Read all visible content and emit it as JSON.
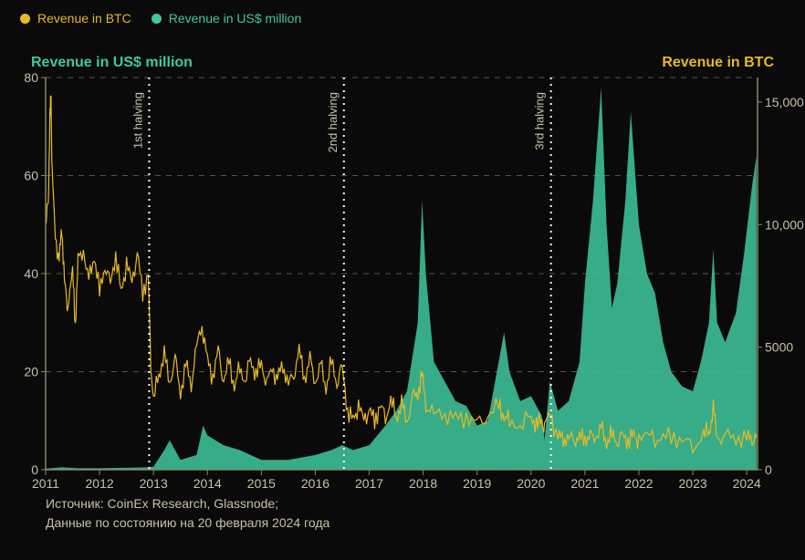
{
  "legend": {
    "btc": {
      "label": "Revenue in BTC",
      "color": "#e8b923"
    },
    "usd": {
      "label": "Revenue in US$ million",
      "color": "#3fc99f"
    }
  },
  "axis_titles": {
    "left": {
      "text": "Revenue in US$ million",
      "color": "#3fc99f"
    },
    "right": {
      "text": "Revenue in BTC",
      "color": "#e8b923"
    }
  },
  "chart": {
    "type": "dual-axis-area-line",
    "background_color": "#0a0a0a",
    "grid_color": "#555544",
    "axis_line_color": "#888866",
    "tick_label_color": "#c8c0a8",
    "tick_fontsize": 14,
    "x": {
      "min": 2011.0,
      "max": 2024.2,
      "ticks": [
        2011,
        2012,
        2013,
        2014,
        2015,
        2016,
        2017,
        2018,
        2019,
        2020,
        2021,
        2022,
        2023,
        2024
      ]
    },
    "y_left": {
      "min": 0,
      "max": 80,
      "ticks": [
        0,
        20,
        40,
        60,
        80
      ]
    },
    "y_right": {
      "min": 0,
      "max": 16000,
      "ticks": [
        0,
        5000,
        10000,
        15000
      ],
      "tick_labels": [
        "0",
        "5000",
        "10,000",
        "15,000"
      ]
    },
    "halvings": [
      {
        "x": 2012.92,
        "label": "1st halving"
      },
      {
        "x": 2016.53,
        "label": "2nd halving"
      },
      {
        "x": 2020.37,
        "label": "3rd halving"
      }
    ],
    "halving_line_color": "#ffffff",
    "halving_label_color": "#c8c0a8",
    "halving_label_fontsize": 13,
    "series_usd": {
      "color": "#3fc99f",
      "fill_opacity": 0.85,
      "points": [
        [
          2011.0,
          0.2
        ],
        [
          2011.3,
          0.5
        ],
        [
          2011.6,
          0.3
        ],
        [
          2012.0,
          0.3
        ],
        [
          2012.5,
          0.4
        ],
        [
          2012.9,
          0.5
        ],
        [
          2013.0,
          0.6
        ],
        [
          2013.2,
          4
        ],
        [
          2013.3,
          6
        ],
        [
          2013.5,
          2
        ],
        [
          2013.8,
          3
        ],
        [
          2013.92,
          9
        ],
        [
          2014.0,
          7
        ],
        [
          2014.3,
          5
        ],
        [
          2014.6,
          4
        ],
        [
          2015.0,
          2
        ],
        [
          2015.5,
          2
        ],
        [
          2016.0,
          3
        ],
        [
          2016.3,
          4
        ],
        [
          2016.5,
          5
        ],
        [
          2016.7,
          4
        ],
        [
          2017.0,
          5
        ],
        [
          2017.3,
          9
        ],
        [
          2017.5,
          12
        ],
        [
          2017.7,
          16
        ],
        [
          2017.9,
          30
        ],
        [
          2017.98,
          55
        ],
        [
          2018.05,
          40
        ],
        [
          2018.2,
          22
        ],
        [
          2018.4,
          18
        ],
        [
          2018.6,
          14
        ],
        [
          2018.8,
          13
        ],
        [
          2019.0,
          9
        ],
        [
          2019.2,
          10
        ],
        [
          2019.4,
          22
        ],
        [
          2019.5,
          28
        ],
        [
          2019.6,
          20
        ],
        [
          2019.8,
          14
        ],
        [
          2020.0,
          15
        ],
        [
          2020.2,
          11
        ],
        [
          2020.25,
          6
        ],
        [
          2020.35,
          18
        ],
        [
          2020.5,
          12
        ],
        [
          2020.7,
          14
        ],
        [
          2020.9,
          22
        ],
        [
          2021.0,
          38
        ],
        [
          2021.15,
          55
        ],
        [
          2021.3,
          78
        ],
        [
          2021.4,
          50
        ],
        [
          2021.5,
          33
        ],
        [
          2021.6,
          38
        ],
        [
          2021.75,
          55
        ],
        [
          2021.85,
          73
        ],
        [
          2022.0,
          50
        ],
        [
          2022.15,
          40
        ],
        [
          2022.3,
          36
        ],
        [
          2022.45,
          26
        ],
        [
          2022.6,
          20
        ],
        [
          2022.8,
          17
        ],
        [
          2023.0,
          16
        ],
        [
          2023.15,
          22
        ],
        [
          2023.3,
          30
        ],
        [
          2023.38,
          45
        ],
        [
          2023.45,
          30
        ],
        [
          2023.6,
          26
        ],
        [
          2023.8,
          32
        ],
        [
          2023.95,
          44
        ],
        [
          2024.1,
          58
        ],
        [
          2024.18,
          64
        ]
      ]
    },
    "series_btc": {
      "color": "#e8b923",
      "line_width": 1.2,
      "points": [
        [
          2011.0,
          50
        ],
        [
          2011.05,
          55
        ],
        [
          2011.08,
          72
        ],
        [
          2011.1,
          76
        ],
        [
          2011.12,
          60
        ],
        [
          2011.18,
          48
        ],
        [
          2011.25,
          42
        ],
        [
          2011.3,
          50
        ],
        [
          2011.35,
          38
        ],
        [
          2011.4,
          34
        ],
        [
          2011.5,
          40
        ],
        [
          2011.55,
          30
        ],
        [
          2011.6,
          42
        ],
        [
          2011.7,
          45
        ],
        [
          2011.8,
          38
        ],
        [
          2011.9,
          44
        ],
        [
          2012.0,
          36
        ],
        [
          2012.1,
          42
        ],
        [
          2012.2,
          38
        ],
        [
          2012.3,
          44
        ],
        [
          2012.4,
          36
        ],
        [
          2012.5,
          42
        ],
        [
          2012.6,
          38
        ],
        [
          2012.7,
          44
        ],
        [
          2012.8,
          36
        ],
        [
          2012.9,
          40
        ],
        [
          2012.95,
          22
        ],
        [
          2013.0,
          14
        ],
        [
          2013.1,
          20
        ],
        [
          2013.2,
          23
        ],
        [
          2013.3,
          18
        ],
        [
          2013.4,
          22
        ],
        [
          2013.5,
          16
        ],
        [
          2013.6,
          21
        ],
        [
          2013.7,
          18
        ],
        [
          2013.8,
          25
        ],
        [
          2013.9,
          30
        ],
        [
          2014.0,
          22
        ],
        [
          2014.1,
          19
        ],
        [
          2014.2,
          24
        ],
        [
          2014.3,
          18
        ],
        [
          2014.4,
          22
        ],
        [
          2014.5,
          17
        ],
        [
          2014.6,
          21
        ],
        [
          2014.7,
          18
        ],
        [
          2014.8,
          23
        ],
        [
          2014.9,
          19
        ],
        [
          2015.0,
          22
        ],
        [
          2015.1,
          17
        ],
        [
          2015.2,
          21
        ],
        [
          2015.3,
          18
        ],
        [
          2015.4,
          22
        ],
        [
          2015.5,
          17
        ],
        [
          2015.6,
          20
        ],
        [
          2015.7,
          24
        ],
        [
          2015.8,
          19
        ],
        [
          2015.9,
          22
        ],
        [
          2016.0,
          18
        ],
        [
          2016.1,
          21
        ],
        [
          2016.2,
          17
        ],
        [
          2016.3,
          22
        ],
        [
          2016.4,
          18
        ],
        [
          2016.5,
          21
        ],
        [
          2016.6,
          12
        ],
        [
          2016.7,
          10
        ],
        [
          2016.8,
          13
        ],
        [
          2016.9,
          10
        ],
        [
          2017.0,
          12
        ],
        [
          2017.1,
          10
        ],
        [
          2017.2,
          13
        ],
        [
          2017.3,
          11
        ],
        [
          2017.4,
          14
        ],
        [
          2017.5,
          11
        ],
        [
          2017.6,
          13
        ],
        [
          2017.7,
          10
        ],
        [
          2017.8,
          14
        ],
        [
          2017.9,
          16
        ],
        [
          2017.98,
          19
        ],
        [
          2018.05,
          14
        ],
        [
          2018.2,
          11
        ],
        [
          2018.4,
          12
        ],
        [
          2018.6,
          10
        ],
        [
          2018.8,
          11
        ],
        [
          2019.0,
          9
        ],
        [
          2019.2,
          11
        ],
        [
          2019.4,
          13
        ],
        [
          2019.5,
          11
        ],
        [
          2019.6,
          10
        ],
        [
          2019.8,
          9
        ],
        [
          2020.0,
          11
        ],
        [
          2020.1,
          9
        ],
        [
          2020.2,
          10
        ],
        [
          2020.25,
          8
        ],
        [
          2020.35,
          12
        ],
        [
          2020.5,
          6
        ],
        [
          2020.6,
          7
        ],
        [
          2020.7,
          6
        ],
        [
          2020.8,
          7
        ],
        [
          2020.9,
          6
        ],
        [
          2021.0,
          7
        ],
        [
          2021.1,
          6
        ],
        [
          2021.2,
          7
        ],
        [
          2021.3,
          8
        ],
        [
          2021.4,
          6
        ],
        [
          2021.5,
          7
        ],
        [
          2021.6,
          6
        ],
        [
          2021.7,
          7
        ],
        [
          2021.8,
          6
        ],
        [
          2021.9,
          7
        ],
        [
          2022.0,
          6
        ],
        [
          2022.2,
          7
        ],
        [
          2022.4,
          6
        ],
        [
          2022.6,
          7
        ],
        [
          2022.8,
          6
        ],
        [
          2023.0,
          5
        ],
        [
          2023.2,
          7
        ],
        [
          2023.3,
          8
        ],
        [
          2023.38,
          12
        ],
        [
          2023.45,
          7
        ],
        [
          2023.6,
          6
        ],
        [
          2023.8,
          7
        ],
        [
          2024.0,
          6
        ],
        [
          2024.1,
          7
        ],
        [
          2024.18,
          6
        ]
      ]
    }
  },
  "source": {
    "line1": "Источник: CoinEx Research, Glassnode;",
    "line2": "Данные по состоянию на 20 февраля 2024 года",
    "color": "#c8c0a8"
  }
}
